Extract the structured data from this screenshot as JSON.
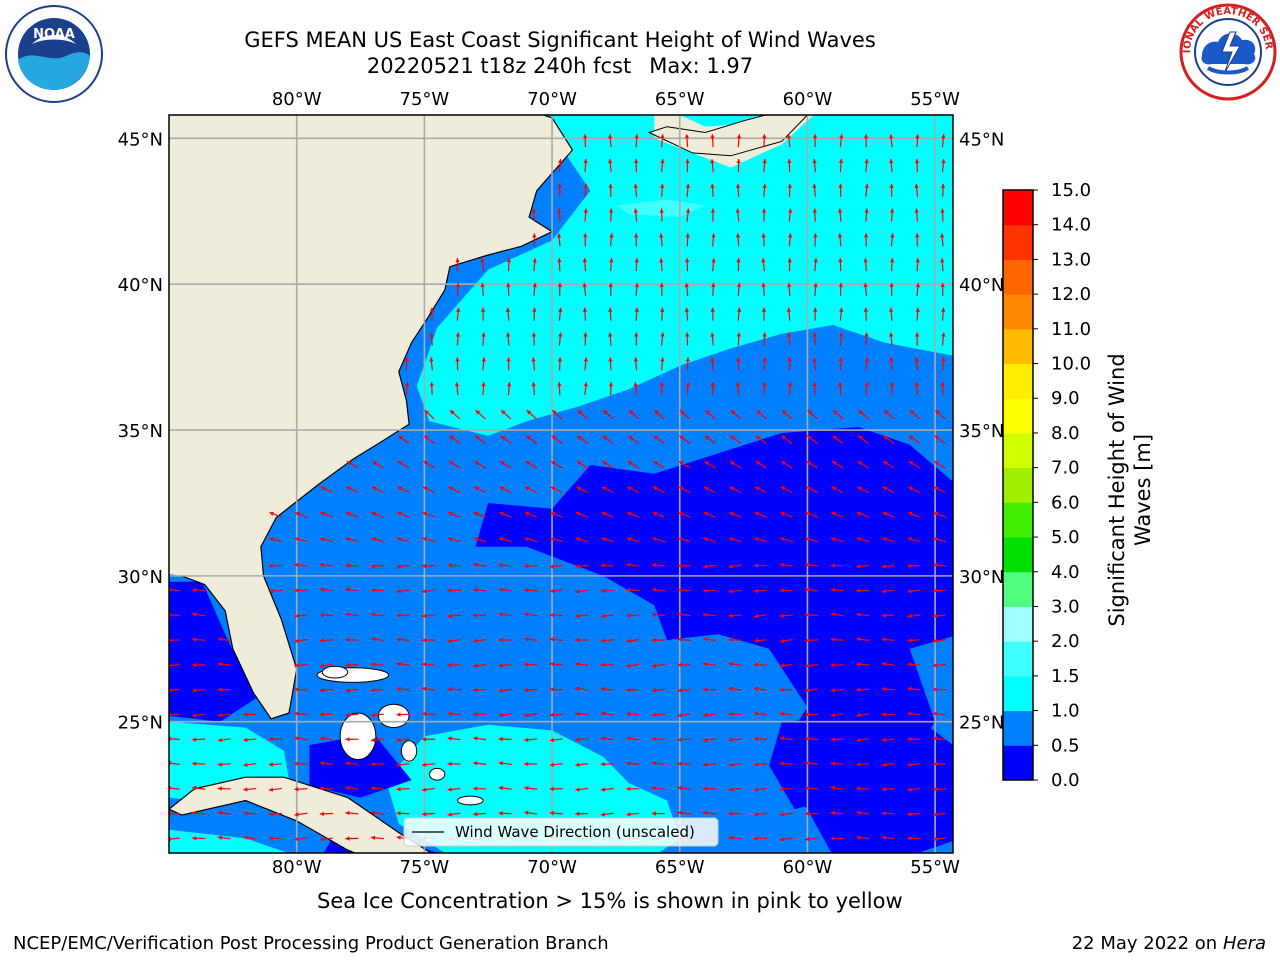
{
  "title": {
    "line1": "GEFS MEAN US East Coast Significant Height of Wind Waves",
    "run": "20220521 t18z 240h fcst",
    "max": "Max: 1.97"
  },
  "logos": {
    "left": "noaa-logo",
    "left_text": "NOAA",
    "right": "nws-logo",
    "right_text": "NATIONAL WEATHER SERVICE"
  },
  "map": {
    "lon_ticks": [
      "80°W",
      "75°W",
      "70°W",
      "65°W",
      "60°W",
      "55°W"
    ],
    "lon_values": [
      -80,
      -75,
      -70,
      -65,
      -60,
      -55
    ],
    "lat_ticks": [
      "45°N",
      "40°N",
      "35°N",
      "30°N",
      "25°N"
    ],
    "lat_values": [
      45,
      40,
      35,
      30,
      25
    ],
    "lon_range": [
      -85,
      -54.3
    ],
    "lat_range": [
      20.5,
      45.8
    ],
    "grid": true,
    "legend": "Wind Wave Direction (unscaled)",
    "land_color": "#efedda",
    "vector_color": "#ff0000"
  },
  "colorbar": {
    "label": "Significant Height of Wind Waves [m]",
    "ticks": [
      "0.0",
      "0.5",
      "1.0",
      "1.5",
      "2.0",
      "3.0",
      "4.0",
      "5.0",
      "6.0",
      "7.0",
      "8.0",
      "9.0",
      "10.0",
      "11.0",
      "12.0",
      "13.0",
      "14.0",
      "15.0"
    ],
    "colors": [
      "#0000ff",
      "#0080ff",
      "#00ffff",
      "#40ffff",
      "#a0ffff",
      "#50ff80",
      "#00e000",
      "#40ee00",
      "#a0ee00",
      "#d0ff00",
      "#ffff00",
      "#ffee00",
      "#ffbb00",
      "#ff8800",
      "#ff6600",
      "#ff3300",
      "#ff0000"
    ]
  },
  "subtitle": "Sea Ice Concentration > 15% is shown in pink to yellow",
  "footer": {
    "left": "NCEP/EMC/Verification Post Processing Product Generation Branch",
    "date": "22 May 2022 on",
    "machine": "Hera"
  }
}
